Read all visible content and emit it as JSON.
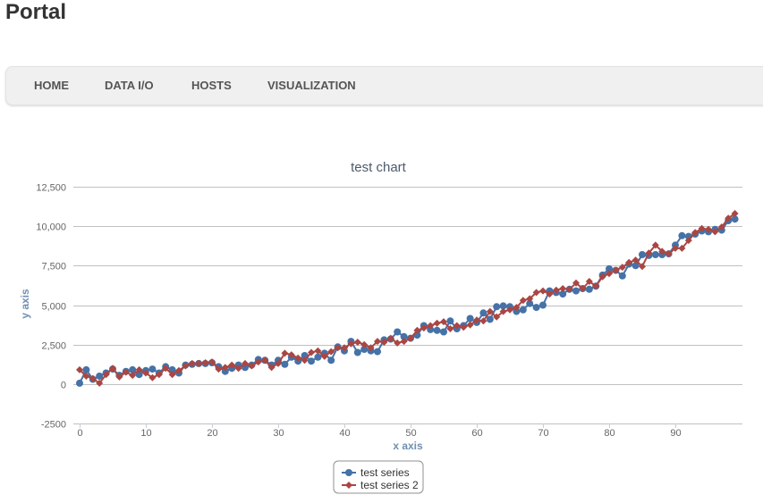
{
  "app_title": "Portal",
  "nav": [
    {
      "label": "HOME"
    },
    {
      "label": "DATA I/O"
    },
    {
      "label": "HOSTS"
    },
    {
      "label": "VISUALIZATION"
    }
  ],
  "chart_data": {
    "type": "line",
    "title": "test chart",
    "xlabel": "x axis",
    "ylabel": "y axis",
    "xlim": [
      0,
      100
    ],
    "ylim": [
      -2500,
      12500
    ],
    "xticks": [
      0,
      10,
      20,
      30,
      40,
      50,
      60,
      70,
      80,
      90
    ],
    "xtick_labels": [
      "0",
      "10",
      "20",
      "30",
      "40",
      "50",
      "60",
      "70",
      "80",
      "90"
    ],
    "yticks": [
      -2500,
      0,
      2500,
      5000,
      7500,
      10000,
      12500
    ],
    "ytick_labels": [
      "-2500",
      "0",
      "2,500",
      "5,000",
      "7,500",
      "10,000",
      "12,500"
    ],
    "grid": true,
    "legend_position": "bottom-center",
    "series": [
      {
        "name": "test series",
        "color": "#4572a7",
        "marker": "circle",
        "x": [
          0,
          1,
          2,
          3,
          4,
          5,
          6,
          7,
          8,
          9,
          10,
          11,
          12,
          13,
          14,
          15,
          16,
          17,
          18,
          19,
          20,
          21,
          22,
          23,
          24,
          25,
          26,
          27,
          28,
          29,
          30,
          31,
          32,
          33,
          34,
          35,
          36,
          37,
          38,
          39,
          40,
          41,
          42,
          43,
          44,
          45,
          46,
          47,
          48,
          49,
          50,
          51,
          52,
          53,
          54,
          55,
          56,
          57,
          58,
          59,
          60,
          61,
          62,
          63,
          64,
          65,
          66,
          67,
          68,
          69,
          70,
          71,
          72,
          73,
          74,
          75,
          76,
          77,
          78,
          79,
          80,
          81,
          82,
          83,
          84,
          85,
          86,
          87,
          88,
          89,
          90,
          91,
          92,
          93,
          94,
          95,
          96,
          97,
          98,
          99
        ],
        "values": [
          50,
          900,
          300,
          500,
          700,
          950,
          550,
          800,
          900,
          600,
          850,
          950,
          700,
          1100,
          900,
          700,
          1200,
          1250,
          1300,
          1300,
          1350,
          1100,
          800,
          1000,
          1200,
          1050,
          1200,
          1550,
          1500,
          1200,
          1500,
          1250,
          1700,
          1450,
          1800,
          1450,
          1700,
          1950,
          1500,
          2350,
          2100,
          2700,
          2000,
          2200,
          2100,
          2050,
          2800,
          2850,
          3300,
          3000,
          2900,
          3100,
          3700,
          3450,
          3400,
          3300,
          4000,
          3500,
          3700,
          4150,
          3900,
          4500,
          4100,
          4900,
          4950,
          4900,
          4600,
          4700,
          5100,
          4850,
          5000,
          5900,
          5800,
          5700,
          6000,
          5900,
          6050,
          6000,
          6200,
          6900,
          7300,
          7200,
          6850,
          7600,
          7500,
          8200,
          8150,
          8200,
          8200,
          8250,
          8800,
          9400,
          9350,
          9500,
          9700,
          9650,
          9800,
          9750,
          10350,
          10450
        ]
      },
      {
        "name": "test series 2",
        "color": "#aa4643",
        "marker": "diamond",
        "x": [
          0,
          1,
          2,
          3,
          4,
          5,
          6,
          7,
          8,
          9,
          10,
          11,
          12,
          13,
          14,
          15,
          16,
          17,
          18,
          19,
          20,
          21,
          22,
          23,
          24,
          25,
          26,
          27,
          28,
          29,
          30,
          31,
          32,
          33,
          34,
          35,
          36,
          37,
          38,
          39,
          40,
          41,
          42,
          43,
          44,
          45,
          46,
          47,
          48,
          49,
          50,
          51,
          52,
          53,
          54,
          55,
          56,
          57,
          58,
          59,
          60,
          61,
          62,
          63,
          64,
          65,
          66,
          67,
          68,
          69,
          70,
          71,
          72,
          73,
          74,
          75,
          76,
          77,
          78,
          79,
          80,
          81,
          82,
          83,
          84,
          85,
          86,
          87,
          88,
          89,
          90,
          91,
          92,
          93,
          94,
          95,
          96,
          97,
          98,
          99
        ],
        "values": [
          900,
          500,
          350,
          50,
          600,
          1000,
          450,
          750,
          550,
          900,
          700,
          400,
          600,
          1000,
          600,
          850,
          1150,
          1300,
          1300,
          1350,
          1400,
          950,
          1050,
          1200,
          1000,
          1300,
          1150,
          1400,
          1500,
          1050,
          1300,
          1950,
          1850,
          1650,
          1500,
          2000,
          2100,
          1750,
          2050,
          2300,
          2300,
          2550,
          2650,
          2500,
          2300,
          2700,
          2650,
          2900,
          2600,
          2700,
          2900,
          3400,
          3550,
          3700,
          3850,
          3950,
          3500,
          3700,
          3600,
          3750,
          4050,
          4000,
          4600,
          4250,
          4600,
          4700,
          4850,
          5300,
          5400,
          5800,
          5900,
          5700,
          5950,
          6050,
          6000,
          6400,
          6050,
          6500,
          6200,
          6800,
          7000,
          7200,
          7400,
          7700,
          7850,
          7450,
          8300,
          8800,
          8400,
          8250,
          8600,
          8600,
          9100,
          9600,
          9850,
          9800,
          9650,
          9950,
          10500,
          10800
        ]
      }
    ]
  }
}
